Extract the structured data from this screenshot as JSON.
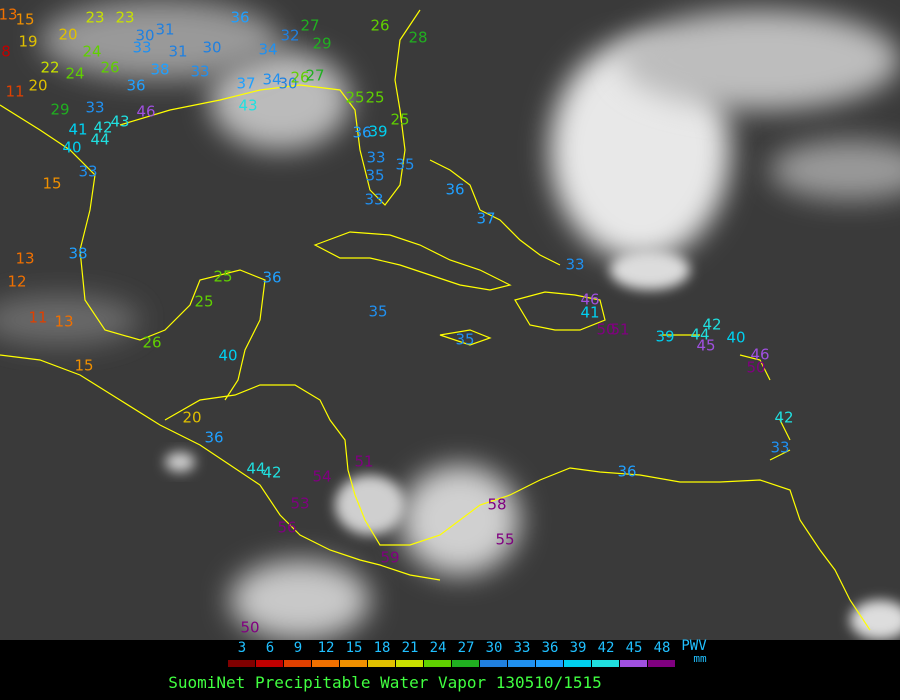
{
  "title": "SuomiNet Precipitable Water Vapor 130510/1515",
  "legend": {
    "unit_top": "PWV",
    "unit_bottom": "mm",
    "labels": [
      3,
      6,
      9,
      12,
      15,
      18,
      21,
      24,
      27,
      30,
      33,
      36,
      39,
      42,
      45,
      48
    ],
    "colors": [
      "#800000",
      "#c00000",
      "#e04000",
      "#f07000",
      "#f09000",
      "#e0c000",
      "#c8e000",
      "#60d000",
      "#20b020",
      "#2080e0",
      "#2090f0",
      "#20a0ff",
      "#00d0f0",
      "#20e0e0",
      "#a050e0",
      "#800080"
    ]
  },
  "stations": [
    13,
    15,
    19,
    20,
    23,
    23,
    8,
    22,
    24,
    11,
    20,
    24,
    26,
    30,
    31,
    33,
    31,
    30,
    34,
    36,
    32,
    27,
    29,
    26,
    28,
    36,
    38,
    33,
    37,
    34,
    30,
    26,
    27,
    25,
    25,
    43,
    46,
    43,
    33,
    29,
    41,
    42,
    40,
    44,
    33,
    15,
    36,
    39,
    25,
    33,
    35,
    35,
    33,
    36,
    37,
    13,
    12,
    38,
    11,
    13,
    25,
    25,
    36,
    35,
    35,
    41,
    46,
    50,
    51,
    39,
    44,
    42,
    45,
    40,
    46,
    50,
    42,
    33,
    26,
    40,
    15,
    20,
    36,
    44,
    42,
    54,
    51,
    53,
    56,
    59,
    58,
    55,
    36,
    50,
    33
  ]
}
